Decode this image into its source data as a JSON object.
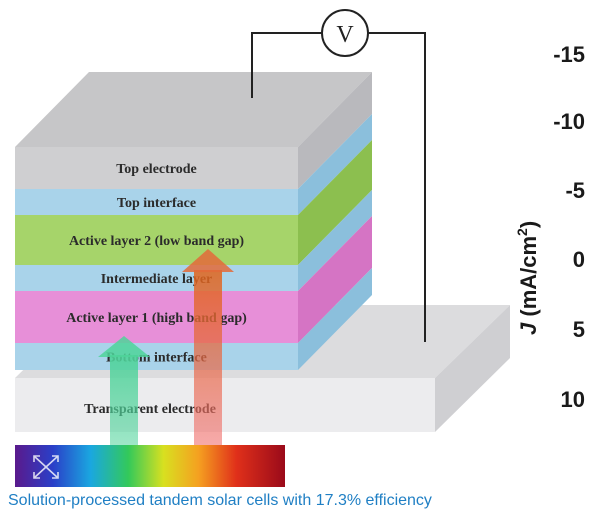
{
  "layers": [
    {
      "label": "Top electrode",
      "front": "#cfcfd1",
      "side": "#b9b9bd"
    },
    {
      "label": "Top interface",
      "front": "#a9d3ea",
      "side": "#8bbfdc"
    },
    {
      "label": "Active layer 2 (low band gap)",
      "front": "#a6d46a",
      "side": "#8cbf4f"
    },
    {
      "label": "Intermediate layer",
      "front": "#a9d3ea",
      "side": "#8bbfdc"
    },
    {
      "label": "Active layer 1 (high band gap)",
      "front": "#e78fd8",
      "side": "#d574c4"
    },
    {
      "label": "Bottom interface",
      "front": "#a9d3ea",
      "side": "#8bbfdc"
    }
  ],
  "substrate": {
    "label": "Transparent electrode"
  },
  "meter": {
    "label": "V"
  },
  "axis": {
    "label": "J (mA/cm²)",
    "label_italic": "J",
    "label_rest": " (mA/cm",
    "label_sup": "2",
    "label_end": ")",
    "ticks": [
      "-15",
      "-10",
      "-5",
      "0",
      "5",
      "10"
    ]
  },
  "caption": "Solution-processed tandem solar cells with 17.3% efficiency",
  "colors": {
    "top_face": "#c4c4c6",
    "substrate_front": "#e8e8ea",
    "substrate_top": "#d8d8da",
    "arrow_green": "#4fd39a",
    "arrow_red": "#e86a6a",
    "caption": "#1f7fc4"
  }
}
